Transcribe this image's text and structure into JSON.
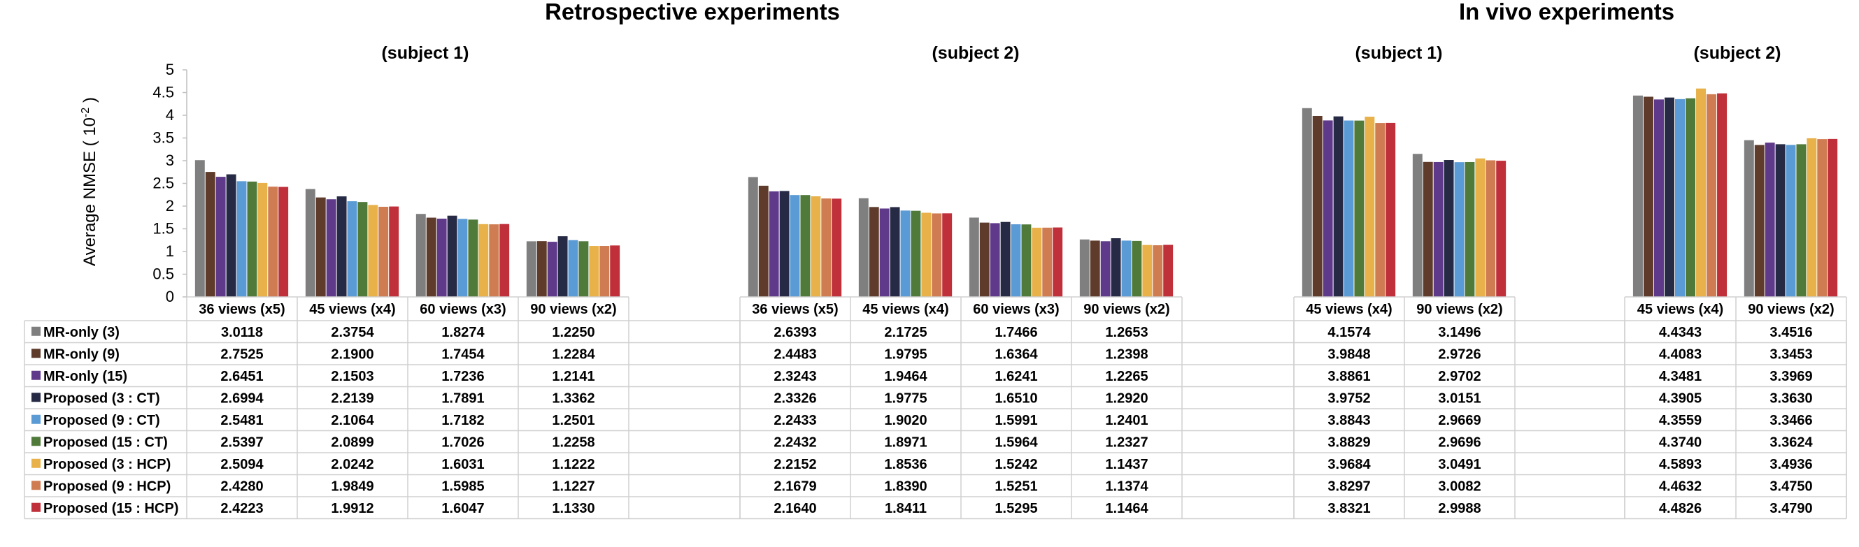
{
  "chart_data": {
    "type": "bar",
    "ylabel": "Average NMSE",
    "ylabel_unit": "( 10",
    "ylabel_exp": "-2",
    "ylabel_close": ")",
    "ylim": [
      0,
      5
    ],
    "yticks": [
      "0",
      "0.5",
      "1",
      "1.5",
      "2",
      "2.5",
      "3",
      "3.5",
      "4",
      "4.5",
      "5"
    ],
    "grid": false,
    "legend": "table-left",
    "sections": [
      {
        "title": "Retrospective experiments"
      },
      {
        "title": "In vivo experiments"
      }
    ],
    "series": [
      {
        "name": "MR-only (3)",
        "color": "#7f7f7f"
      },
      {
        "name": "MR-only (9)",
        "color": "#5e3b2a"
      },
      {
        "name": "MR-only (15)",
        "color": "#603a8a"
      },
      {
        "name": "Proposed (3 : CT)",
        "color": "#262a44"
      },
      {
        "name": "Proposed (9 : CT)",
        "color": "#5a9bd5"
      },
      {
        "name": "Proposed (15 : CT)",
        "color": "#4f7a3a"
      },
      {
        "name": "Proposed (3 : HCP)",
        "color": "#e8b14a"
      },
      {
        "name": "Proposed (9 : HCP)",
        "color": "#d07c52"
      },
      {
        "name": "Proposed (15 : HCP)",
        "color": "#c0303a"
      }
    ],
    "groups": [
      {
        "subject": "(subject 1)",
        "categories": [
          "36 views (x5)",
          "45 views (x4)",
          "60 views (x3)",
          "90 views (x2)"
        ],
        "values": [
          [
            "3.0118",
            "2.3754",
            "1.8274",
            "1.2250"
          ],
          [
            "2.7525",
            "2.1900",
            "1.7454",
            "1.2284"
          ],
          [
            "2.6451",
            "2.1503",
            "1.7236",
            "1.2141"
          ],
          [
            "2.6994",
            "2.2139",
            "1.7891",
            "1.3362"
          ],
          [
            "2.5481",
            "2.1064",
            "1.7182",
            "1.2501"
          ],
          [
            "2.5397",
            "2.0899",
            "1.7026",
            "1.2258"
          ],
          [
            "2.5094",
            "2.0242",
            "1.6031",
            "1.1222"
          ],
          [
            "2.4280",
            "1.9849",
            "1.5985",
            "1.1227"
          ],
          [
            "2.4223",
            "1.9912",
            "1.6047",
            "1.1330"
          ]
        ]
      },
      {
        "subject": "(subject 2)",
        "categories": [
          "36 views (x5)",
          "45 views (x4)",
          "60 views (x3)",
          "90 views (x2)"
        ],
        "values": [
          [
            "2.6393",
            "2.1725",
            "1.7466",
            "1.2653"
          ],
          [
            "2.4483",
            "1.9795",
            "1.6364",
            "1.2398"
          ],
          [
            "2.3243",
            "1.9464",
            "1.6241",
            "1.2265"
          ],
          [
            "2.3326",
            "1.9775",
            "1.6510",
            "1.2920"
          ],
          [
            "2.2433",
            "1.9020",
            "1.5991",
            "1.2401"
          ],
          [
            "2.2432",
            "1.8971",
            "1.5964",
            "1.2327"
          ],
          [
            "2.2152",
            "1.8536",
            "1.5242",
            "1.1437"
          ],
          [
            "2.1679",
            "1.8390",
            "1.5251",
            "1.1374"
          ],
          [
            "2.1640",
            "1.8411",
            "1.5295",
            "1.1464"
          ]
        ]
      },
      {
        "subject": "(subject 1)",
        "categories": [
          "45 views (x4)",
          "90 views (x2)"
        ],
        "values": [
          [
            "4.1574",
            "3.1496"
          ],
          [
            "3.9848",
            "2.9726"
          ],
          [
            "3.8861",
            "2.9702"
          ],
          [
            "3.9752",
            "3.0151"
          ],
          [
            "3.8843",
            "2.9669"
          ],
          [
            "3.8829",
            "2.9696"
          ],
          [
            "3.9684",
            "3.0491"
          ],
          [
            "3.8297",
            "3.0082"
          ],
          [
            "3.8321",
            "2.9988"
          ]
        ]
      },
      {
        "subject": "(subject 2)",
        "categories": [
          "45 views (x4)",
          "90 views (x2)"
        ],
        "values": [
          [
            "4.4343",
            "3.4516"
          ],
          [
            "4.4083",
            "3.3453"
          ],
          [
            "4.3481",
            "3.3969"
          ],
          [
            "4.3905",
            "3.3630"
          ],
          [
            "4.3559",
            "3.3466"
          ],
          [
            "4.3740",
            "3.3624"
          ],
          [
            "4.5893",
            "3.4936"
          ],
          [
            "4.4632",
            "3.4750"
          ],
          [
            "4.4826",
            "3.4790"
          ]
        ]
      }
    ]
  }
}
